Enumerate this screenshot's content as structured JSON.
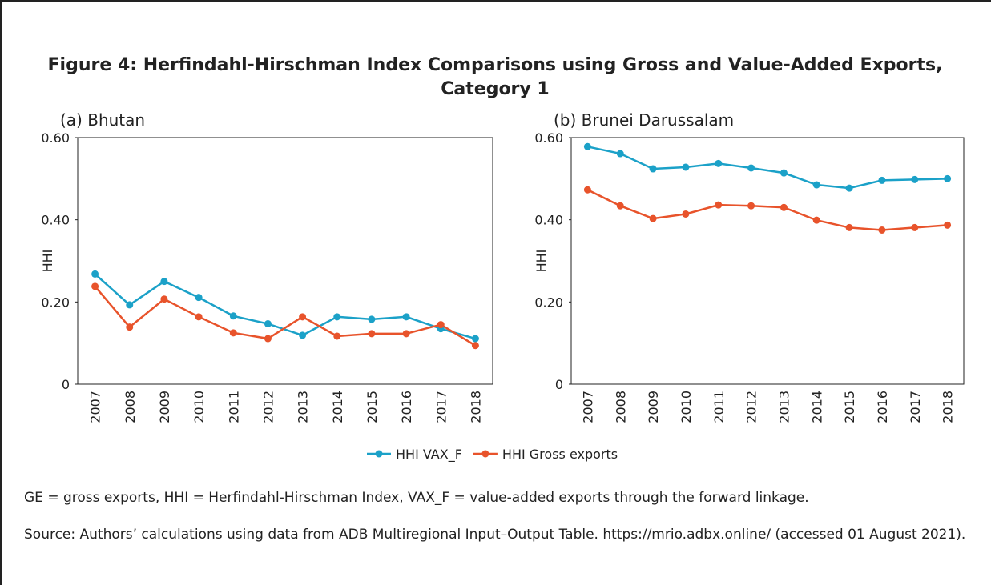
{
  "figure": {
    "title": "Figure 4: Herfindahl-Hirschman Index Comparisons using Gross and Value-Added Exports, Category 1",
    "notes": [
      "GE = gross exports, HHI = Herfindahl-Hirschman Index, VAX_F = value-added exports through the forward linkage.",
      "Source: Authors’ calculations using data from ADB Multiregional Input–Output Table. https://mrio.adbx.online/ (accessed 01 August 2021)."
    ]
  },
  "chart_data": [
    {
      "type": "line",
      "title": "(a) Bhutan",
      "ylabel": "HHI",
      "categories": [
        "2007",
        "2008",
        "2009",
        "2010",
        "2011",
        "2012",
        "2013",
        "2014",
        "2015",
        "2016",
        "2017",
        "2018"
      ],
      "series": [
        {
          "name": "HHI VAX_F",
          "color": "#1ba1c8",
          "values": [
            0.268,
            0.193,
            0.25,
            0.211,
            0.166,
            0.147,
            0.119,
            0.164,
            0.158,
            0.164,
            0.135,
            0.111
          ]
        },
        {
          "name": "HHI Gross exports",
          "color": "#e8532b",
          "values": [
            0.238,
            0.139,
            0.207,
            0.164,
            0.125,
            0.111,
            0.164,
            0.117,
            0.123,
            0.123,
            0.145,
            0.094
          ]
        }
      ],
      "ylim": [
        0,
        0.6
      ],
      "yticks": [
        0,
        {
          "value": 0.2,
          "label": "0.20"
        },
        {
          "value": 0.4,
          "label": "0.40"
        },
        {
          "value": 0.6,
          "label": "0.60"
        }
      ]
    },
    {
      "type": "line",
      "title": "(b) Brunei Darussalam",
      "ylabel": "HHI",
      "categories": [
        "2007",
        "2008",
        "2009",
        "2010",
        "2011",
        "2012",
        "2013",
        "2014",
        "2015",
        "2016",
        "2017",
        "2018"
      ],
      "series": [
        {
          "name": "HHI VAX_F",
          "color": "#1ba1c8",
          "values": [
            0.578,
            0.561,
            0.524,
            0.528,
            0.537,
            0.526,
            0.514,
            0.485,
            0.477,
            0.496,
            0.498,
            0.5
          ]
        },
        {
          "name": "HHI Gross exports",
          "color": "#e8532b",
          "values": [
            0.473,
            0.434,
            0.403,
            0.414,
            0.436,
            0.434,
            0.43,
            0.399,
            0.381,
            0.375,
            0.381,
            0.387
          ]
        }
      ],
      "ylim": [
        0,
        0.6
      ],
      "yticks": [
        0,
        {
          "value": 0.2,
          "label": "0.20"
        },
        {
          "value": 0.4,
          "label": "0.40"
        },
        {
          "value": 0.6,
          "label": "0.60"
        }
      ]
    }
  ]
}
